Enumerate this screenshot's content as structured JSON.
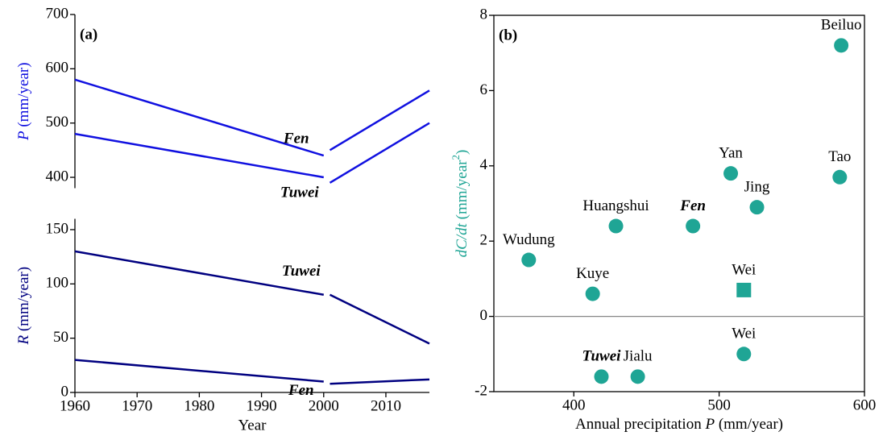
{
  "chart_data": [
    {
      "type": "line",
      "panel_label": "(a)",
      "y_label_parts": [
        "P",
        " (mm/year)"
      ],
      "label_color": "#1010e0",
      "xlim": [
        1960,
        2017
      ],
      "ylim": [
        380,
        700
      ],
      "yticks": [
        400,
        500,
        600,
        700
      ],
      "series": [
        {
          "name": "Fen",
          "color": "#1010e0",
          "segments": [
            {
              "x": [
                1960,
                2000
              ],
              "values": [
                580,
                440
              ]
            },
            {
              "x": [
                2001,
                2017
              ],
              "values": [
                450,
                560
              ]
            }
          ]
        },
        {
          "name": "Tuwei",
          "color": "#1010e0",
          "segments": [
            {
              "x": [
                1960,
                2000
              ],
              "values": [
                480,
                400
              ]
            },
            {
              "x": [
                2001,
                2017
              ],
              "values": [
                390,
                500
              ]
            }
          ]
        }
      ]
    },
    {
      "type": "line",
      "y_label_parts": [
        "R",
        " (mm/year)"
      ],
      "label_color": "#000080",
      "x_label": "Year",
      "xlim": [
        1960,
        2017
      ],
      "xticks": [
        1960,
        1970,
        1980,
        1990,
        2000,
        2010
      ],
      "ylim": [
        0,
        160
      ],
      "yticks": [
        0,
        50,
        100,
        150
      ],
      "series": [
        {
          "name": "Tuwei",
          "color": "#000080",
          "segments": [
            {
              "x": [
                1960,
                2000
              ],
              "values": [
                130,
                90
              ]
            },
            {
              "x": [
                2001,
                2017
              ],
              "values": [
                90,
                45
              ]
            }
          ]
        },
        {
          "name": "Fen",
          "color": "#000080",
          "segments": [
            {
              "x": [
                1960,
                2000
              ],
              "values": [
                30,
                10
              ]
            },
            {
              "x": [
                2001,
                2017
              ],
              "values": [
                8,
                12
              ]
            }
          ]
        }
      ]
    },
    {
      "type": "scatter",
      "panel_label": "(b)",
      "color": "#1fa595",
      "x_label_parts": [
        "Annual precipitation ",
        "P",
        " (mm/year)"
      ],
      "y_label_parts": [
        "dC/dt",
        " (mm/year",
        "2",
        ")"
      ],
      "xlim": [
        345,
        600
      ],
      "xticks": [
        400,
        500,
        600
      ],
      "ylim": [
        -2,
        8
      ],
      "yticks": [
        -2,
        0,
        2,
        4,
        6,
        8
      ],
      "zero_line": true,
      "labels": [
        "Beiluo",
        "Yan",
        "Tao",
        "Jing",
        "Huangshui",
        "Fen",
        "Wudung",
        "Kuye",
        "Wei",
        "Wei",
        "Tuwei",
        "Jialu"
      ],
      "x": [
        584,
        508,
        583,
        526,
        429,
        482,
        369,
        413,
        517,
        517,
        419,
        444
      ],
      "values": [
        7.2,
        3.8,
        3.7,
        2.9,
        2.4,
        2.4,
        1.5,
        0.6,
        0.7,
        -1.0,
        -1.6,
        -1.6
      ],
      "markers": [
        "circle",
        "circle",
        "circle",
        "circle",
        "circle",
        "circle",
        "circle",
        "circle",
        "square",
        "circle",
        "circle",
        "circle"
      ],
      "emphasized": [
        false,
        false,
        false,
        false,
        false,
        true,
        false,
        false,
        false,
        false,
        true,
        false
      ]
    }
  ]
}
